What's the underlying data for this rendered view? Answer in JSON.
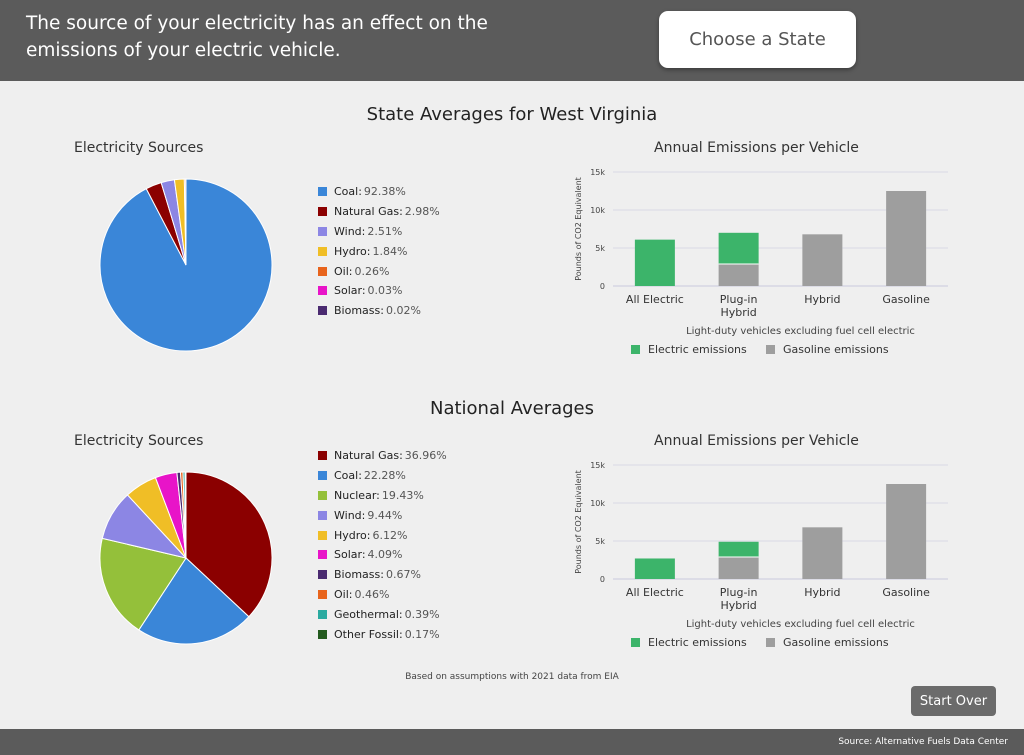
{
  "header": {
    "text": "The source of your electricity has an effect on the emissions of your electric vehicle.",
    "choose_button": "Choose a State"
  },
  "state_section": {
    "title": "State Averages for West Virginia",
    "pie_title": "Electricity Sources",
    "bar_title": "Annual Emissions per Vehicle"
  },
  "national_section": {
    "title": "National Averages",
    "pie_title": "Electricity Sources",
    "bar_title": "Annual Emissions per Vehicle"
  },
  "note": "Based on assumptions with 2021 data from EIA",
  "start_over": "Start Over",
  "footer": "Source: Alternative Fuels Data Center",
  "colors": {
    "Coal": "#3a86d8",
    "Natural Gas": "#8b0000",
    "Wind": "#8c86e4",
    "Hydro": "#f0be26",
    "Oil": "#e8641c",
    "Solar": "#e814c8",
    "Biomass": "#4a2a70",
    "Nuclear": "#94c03a",
    "Geothermal": "#2aaaa0",
    "Other Fossil": "#235a1e",
    "electric": "#3cb46a",
    "gasoline": "#9e9e9e"
  },
  "chart_data": [
    {
      "type": "pie",
      "title": "Electricity Sources",
      "slices": [
        {
          "label": "Coal",
          "value": 92.38,
          "display": "92.38%"
        },
        {
          "label": "Natural Gas",
          "value": 2.98,
          "display": "2.98%"
        },
        {
          "label": "Wind",
          "value": 2.51,
          "display": "2.51%"
        },
        {
          "label": "Hydro",
          "value": 1.84,
          "display": "1.84%"
        },
        {
          "label": "Oil",
          "value": 0.26,
          "display": "0.26%"
        },
        {
          "label": "Solar",
          "value": 0.03,
          "display": "0.03%"
        },
        {
          "label": "Biomass",
          "value": 0.02,
          "display": "0.02%"
        }
      ]
    },
    {
      "type": "bar",
      "stacked": true,
      "title": "Annual Emissions per Vehicle",
      "categories": [
        [
          "All Electric"
        ],
        [
          "Plug-in",
          "Hybrid"
        ],
        [
          "Hybrid"
        ],
        [
          "Gasoline"
        ]
      ],
      "series": [
        {
          "name": "Gasoline emissions",
          "color_key": "gasoline",
          "values": [
            0,
            2900,
            6800,
            12500
          ]
        },
        {
          "name": "Electric emissions",
          "color_key": "electric",
          "values": [
            6100,
            4100,
            0,
            0
          ]
        }
      ],
      "ylabel": "Pounds of CO2 Equivalent",
      "xlabel": "Light-duty vehicles excluding fuel cell electric",
      "ylim": [
        0,
        15000
      ],
      "yticks": [
        0,
        5000,
        10000,
        15000
      ],
      "ytick_labels": [
        "0",
        "5k",
        "10k",
        "15k"
      ],
      "grid": true,
      "legend": "bottom"
    },
    {
      "type": "pie",
      "title": "Electricity Sources",
      "slices": [
        {
          "label": "Natural Gas",
          "value": 36.96,
          "display": "36.96%"
        },
        {
          "label": "Coal",
          "value": 22.28,
          "display": "22.28%"
        },
        {
          "label": "Nuclear",
          "value": 19.43,
          "display": "19.43%"
        },
        {
          "label": "Wind",
          "value": 9.44,
          "display": "9.44%"
        },
        {
          "label": "Hydro",
          "value": 6.12,
          "display": "6.12%"
        },
        {
          "label": "Solar",
          "value": 4.09,
          "display": "4.09%"
        },
        {
          "label": "Biomass",
          "value": 0.67,
          "display": "0.67%"
        },
        {
          "label": "Oil",
          "value": 0.46,
          "display": "0.46%"
        },
        {
          "label": "Geothermal",
          "value": 0.39,
          "display": "0.39%"
        },
        {
          "label": "Other Fossil",
          "value": 0.17,
          "display": "0.17%"
        }
      ]
    },
    {
      "type": "bar",
      "stacked": true,
      "title": "Annual Emissions per Vehicle",
      "categories": [
        [
          "All Electric"
        ],
        [
          "Plug-in",
          "Hybrid"
        ],
        [
          "Hybrid"
        ],
        [
          "Gasoline"
        ]
      ],
      "series": [
        {
          "name": "Gasoline emissions",
          "color_key": "gasoline",
          "values": [
            0,
            2900,
            6800,
            12500
          ]
        },
        {
          "name": "Electric emissions",
          "color_key": "electric",
          "values": [
            2700,
            2000,
            0,
            0
          ]
        }
      ],
      "ylabel": "Pounds of CO2 Equivalent",
      "xlabel": "Light-duty vehicles excluding fuel cell electric",
      "ylim": [
        0,
        15000
      ],
      "yticks": [
        0,
        5000,
        10000,
        15000
      ],
      "ytick_labels": [
        "0",
        "5k",
        "10k",
        "15k"
      ],
      "grid": true,
      "legend": "bottom"
    }
  ]
}
